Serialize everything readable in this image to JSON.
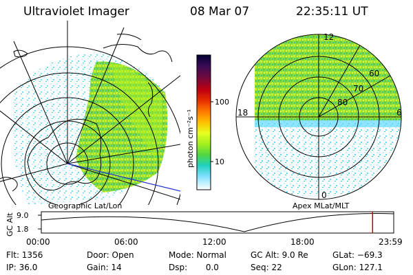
{
  "header": {
    "instrument": "Ultraviolet Imager",
    "date": "08 Mar 07",
    "time": "22:35:11 UT"
  },
  "colorbar": {
    "unit_label": "photon cm⁻²s⁻¹",
    "ticks": [
      "100",
      "10"
    ],
    "colors": [
      "#000033",
      "#3a0a55",
      "#5a0a4a",
      "#8a0020",
      "#c00010",
      "#e83000",
      "#ff7a00",
      "#ffb000",
      "#ffe000",
      "#e0ff20",
      "#aaf020",
      "#66e030",
      "#30d060",
      "#20d0c0",
      "#60d8ff",
      "#bfefff",
      "#ffffff"
    ]
  },
  "left_panel": {
    "label": "Geographic Lat/Lon"
  },
  "right_panel": {
    "label": "Apex  MLat/MLT",
    "mlt_labels": {
      "top": "12",
      "left": "18",
      "right": "6",
      "bottom": "0"
    },
    "lat_labels": [
      "60",
      "70",
      "80"
    ]
  },
  "altitude_plot": {
    "ylabel": "GC Alt",
    "yticks": [
      "9.0",
      "1.8"
    ],
    "xticks": [
      "00:00",
      "06:00",
      "12:00",
      "18:00",
      "23:59"
    ],
    "current_time_fraction": 0.94
  },
  "status": {
    "flt": "Flt: 1356",
    "ip": "IP: 36.0",
    "door": "Door: Open",
    "gain": "Gain: 14",
    "mode": "Mode: Normal",
    "dsp": "Dsp:       0.0",
    "gc_alt": "GC Alt: 9.0 Re",
    "seq": "Seq: 22",
    "glat": "GLat: −69.3",
    "glon": "GLon: 127.1"
  }
}
